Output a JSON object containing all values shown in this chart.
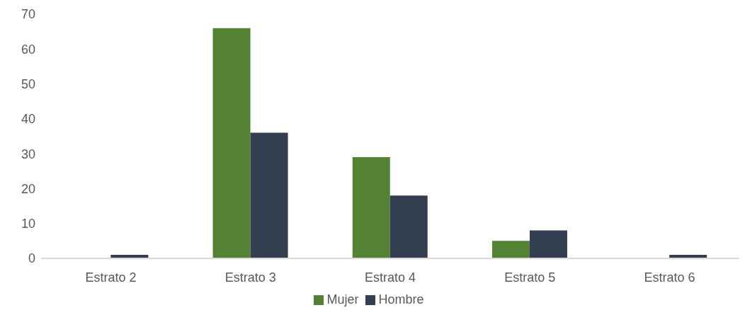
{
  "chart_data": {
    "type": "bar",
    "categories": [
      "Estrato 2",
      "Estrato 3",
      "Estrato 4",
      "Estrato 5",
      "Estrato 6"
    ],
    "series": [
      {
        "name": "Mujer",
        "color": "#548235",
        "values": [
          0,
          66,
          29,
          5,
          0
        ]
      },
      {
        "name": "Hombre",
        "color": "#333f50",
        "values": [
          1,
          36,
          18,
          8,
          1
        ]
      }
    ],
    "ylim": [
      0,
      70
    ],
    "yticks": [
      0,
      10,
      20,
      30,
      40,
      50,
      60,
      70
    ],
    "grid": false,
    "legend": "bottom"
  }
}
